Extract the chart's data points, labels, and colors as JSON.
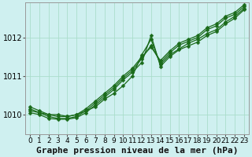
{
  "background_color": "#cff0f0",
  "grid_color": "#aaddcc",
  "line_color": "#1a6b1a",
  "marker_color": "#1a6b1a",
  "xlabel": "Graphe pression niveau de la mer (hPa)",
  "xlim": [
    -0.5,
    23.5
  ],
  "ylim": [
    1009.5,
    1012.9
  ],
  "yticks": [
    1010,
    1011,
    1012
  ],
  "xticks": [
    0,
    1,
    2,
    3,
    4,
    5,
    6,
    7,
    8,
    9,
    10,
    11,
    12,
    13,
    14,
    15,
    16,
    17,
    18,
    19,
    20,
    21,
    22,
    23
  ],
  "series": [
    [
      1010.1,
      1010.05,
      1010.0,
      1010.0,
      1009.95,
      1010.0,
      1010.1,
      1010.2,
      1010.4,
      1010.55,
      1010.75,
      1011.0,
      1011.55,
      1011.95,
      1011.3,
      1011.55,
      1011.7,
      1011.85,
      1011.95,
      1012.1,
      1012.2,
      1012.4,
      1012.55,
      1012.75
    ],
    [
      1010.15,
      1010.05,
      1009.95,
      1009.9,
      1009.9,
      1009.95,
      1010.1,
      1010.3,
      1010.5,
      1010.7,
      1010.95,
      1011.15,
      1011.45,
      1011.8,
      1011.35,
      1011.6,
      1011.8,
      1011.9,
      1012.0,
      1012.2,
      1012.3,
      1012.5,
      1012.6,
      1012.8
    ],
    [
      1010.05,
      1010.0,
      1009.9,
      1009.88,
      1009.88,
      1009.92,
      1010.05,
      1010.25,
      1010.45,
      1010.65,
      1010.9,
      1011.1,
      1011.35,
      1012.05,
      1011.25,
      1011.5,
      1011.68,
      1011.78,
      1011.88,
      1012.05,
      1012.15,
      1012.35,
      1012.5,
      1012.72
    ],
    [
      1010.2,
      1010.1,
      1010.0,
      1009.95,
      1009.95,
      1010.0,
      1010.15,
      1010.35,
      1010.55,
      1010.75,
      1011.0,
      1011.2,
      1011.5,
      1011.75,
      1011.4,
      1011.65,
      1011.85,
      1011.95,
      1012.05,
      1012.25,
      1012.35,
      1012.55,
      1012.65,
      1012.85
    ]
  ],
  "marker_size": 2.5,
  "line_width": 0.9,
  "xlabel_fontsize": 8,
  "tick_fontsize": 6.5
}
